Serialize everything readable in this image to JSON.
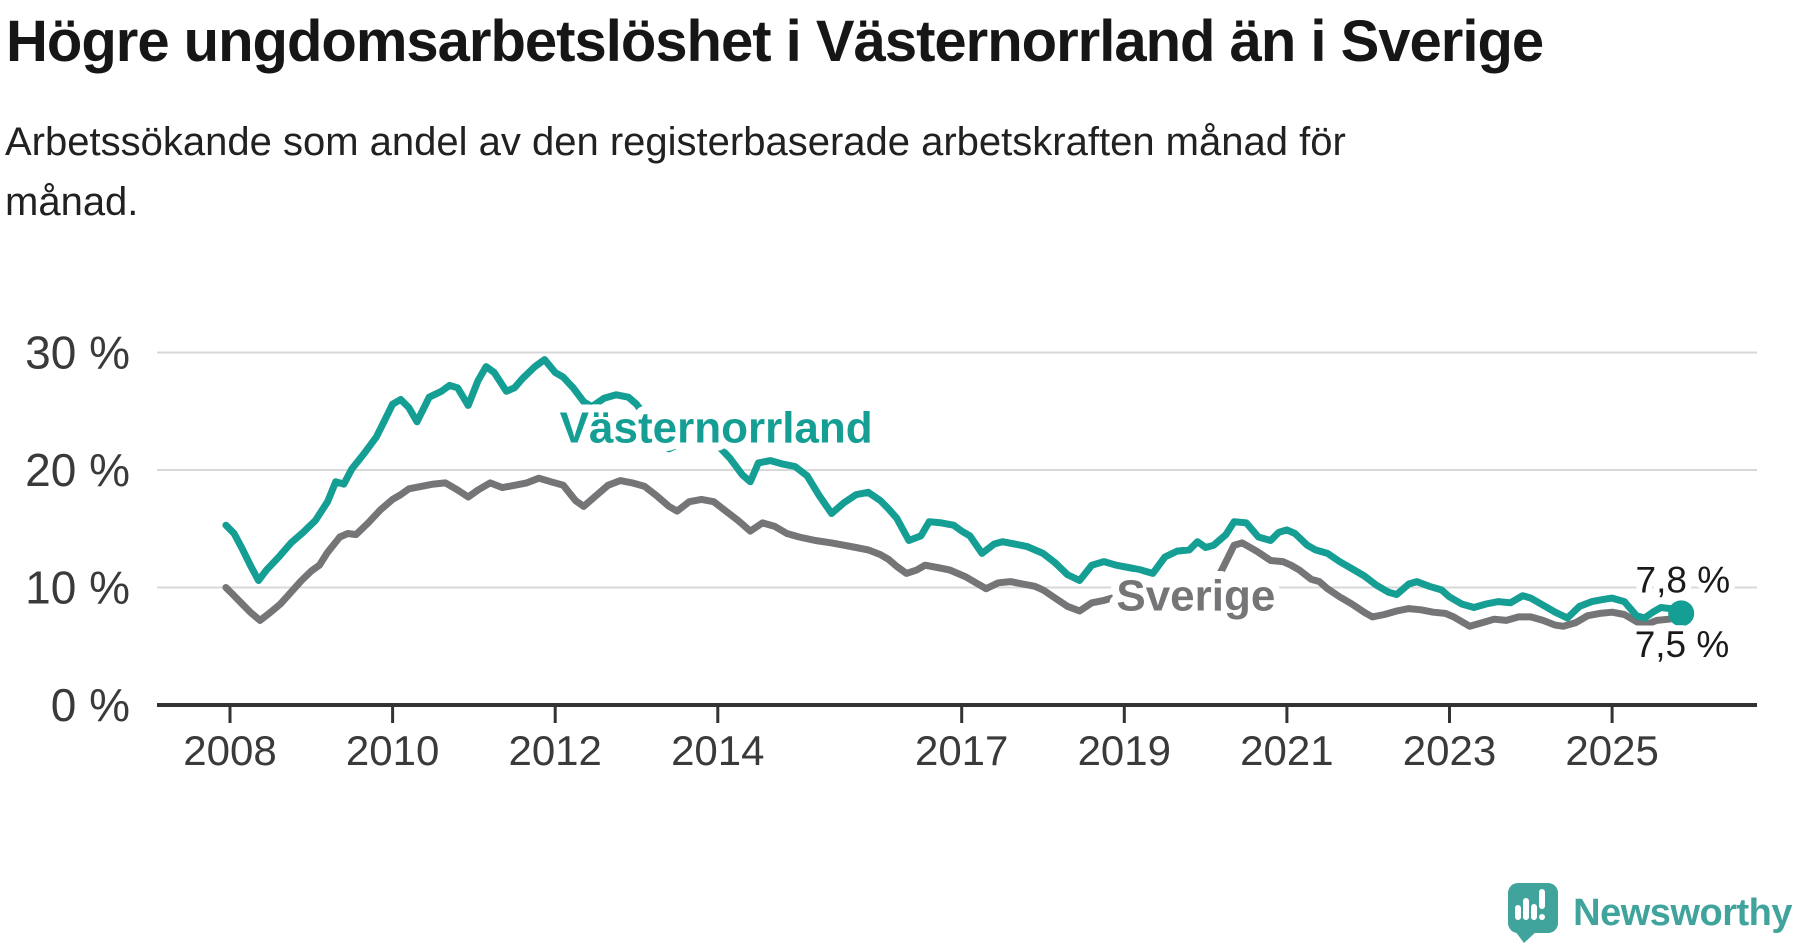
{
  "header": {
    "title": "Högre ungdomsarbetslöshet i Västernorrland än i Sverige",
    "subtitle": "Arbetssökande som andel av den registerbaserade arbetskraften månad för månad."
  },
  "footer": {
    "brand": "Newsworthy"
  },
  "colors": {
    "vasternorrland": "#149E94",
    "sverige": "#757578",
    "grid": "#d8d8d8",
    "axis": "#333336",
    "tick_text": "#3a3a3c",
    "value_text": "#1a1a1a",
    "logo_teal": "#40a39c",
    "background": "#ffffff"
  },
  "chart_data": {
    "type": "line",
    "title": "Högre ungdomsarbetslöshet i Västernorrland än i Sverige",
    "xlabel": "",
    "ylabel": "",
    "unit": "%",
    "grid": true,
    "legend_position": "inline-labels",
    "x_range_years": [
      2007.1,
      2026.8
    ],
    "y_range": [
      0,
      32
    ],
    "y_ticks": [
      {
        "label": "30 %",
        "value": 30
      },
      {
        "label": "20 %",
        "value": 20
      },
      {
        "label": "10 %",
        "value": 10
      },
      {
        "label": "0 %",
        "value": 0
      }
    ],
    "x_ticks": [
      {
        "label": "2008",
        "year": 2008
      },
      {
        "label": "2010",
        "year": 2010
      },
      {
        "label": "2012",
        "year": 2012
      },
      {
        "label": "2014",
        "year": 2014
      },
      {
        "label": "2017",
        "year": 2017
      },
      {
        "label": "2019",
        "year": 2019
      },
      {
        "label": "2021",
        "year": 2021
      },
      {
        "label": "2023",
        "year": 2023
      },
      {
        "label": "2025",
        "year": 2025
      }
    ],
    "series": [
      {
        "name": "Sverige",
        "color": "#757578",
        "end_dot": false,
        "final_value_label": "7,5 %",
        "points": [
          [
            2007.95,
            10.0
          ],
          [
            2008.05,
            9.3
          ],
          [
            2008.15,
            8.6
          ],
          [
            2008.25,
            7.9
          ],
          [
            2008.37,
            7.2
          ],
          [
            2008.5,
            7.9
          ],
          [
            2008.62,
            8.6
          ],
          [
            2008.75,
            9.6
          ],
          [
            2008.88,
            10.6
          ],
          [
            2009.0,
            11.4
          ],
          [
            2009.1,
            11.9
          ],
          [
            2009.2,
            13.0
          ],
          [
            2009.35,
            14.3
          ],
          [
            2009.45,
            14.6
          ],
          [
            2009.55,
            14.5
          ],
          [
            2009.7,
            15.5
          ],
          [
            2009.85,
            16.6
          ],
          [
            2010.0,
            17.5
          ],
          [
            2010.1,
            17.9
          ],
          [
            2010.2,
            18.4
          ],
          [
            2010.35,
            18.6
          ],
          [
            2010.5,
            18.8
          ],
          [
            2010.65,
            18.9
          ],
          [
            2010.8,
            18.3
          ],
          [
            2010.93,
            17.7
          ],
          [
            2011.05,
            18.3
          ],
          [
            2011.2,
            18.9
          ],
          [
            2011.35,
            18.5
          ],
          [
            2011.5,
            18.7
          ],
          [
            2011.65,
            18.9
          ],
          [
            2011.8,
            19.3
          ],
          [
            2011.95,
            19.0
          ],
          [
            2012.1,
            18.7
          ],
          [
            2012.25,
            17.4
          ],
          [
            2012.35,
            16.9
          ],
          [
            2012.5,
            17.8
          ],
          [
            2012.65,
            18.7
          ],
          [
            2012.8,
            19.1
          ],
          [
            2012.95,
            18.9
          ],
          [
            2013.1,
            18.6
          ],
          [
            2013.25,
            17.8
          ],
          [
            2013.4,
            16.9
          ],
          [
            2013.5,
            16.5
          ],
          [
            2013.65,
            17.3
          ],
          [
            2013.8,
            17.5
          ],
          [
            2013.95,
            17.3
          ],
          [
            2014.1,
            16.5
          ],
          [
            2014.25,
            15.7
          ],
          [
            2014.4,
            14.8
          ],
          [
            2014.55,
            15.5
          ],
          [
            2014.7,
            15.2
          ],
          [
            2014.85,
            14.6
          ],
          [
            2015.0,
            14.3
          ],
          [
            2015.2,
            14.0
          ],
          [
            2015.4,
            13.8
          ],
          [
            2015.55,
            13.6
          ],
          [
            2015.7,
            13.4
          ],
          [
            2015.85,
            13.2
          ],
          [
            2016.0,
            12.8
          ],
          [
            2016.1,
            12.4
          ],
          [
            2016.2,
            11.8
          ],
          [
            2016.32,
            11.2
          ],
          [
            2016.45,
            11.5
          ],
          [
            2016.55,
            11.9
          ],
          [
            2016.7,
            11.7
          ],
          [
            2016.85,
            11.5
          ],
          [
            2016.95,
            11.2
          ],
          [
            2017.05,
            10.9
          ],
          [
            2017.15,
            10.5
          ],
          [
            2017.3,
            9.9
          ],
          [
            2017.45,
            10.4
          ],
          [
            2017.6,
            10.5
          ],
          [
            2017.75,
            10.3
          ],
          [
            2017.9,
            10.1
          ],
          [
            2018.0,
            9.8
          ],
          [
            2018.15,
            9.1
          ],
          [
            2018.3,
            8.4
          ],
          [
            2018.45,
            8.0
          ],
          [
            2018.6,
            8.7
          ],
          [
            2018.75,
            8.9
          ],
          [
            2018.9,
            9.2
          ],
          [
            2019.05,
            8.9
          ],
          [
            2019.2,
            7.8
          ],
          [
            2019.35,
            8.7
          ],
          [
            2019.5,
            9.2
          ],
          [
            2019.65,
            9.0
          ],
          [
            2019.8,
            9.0
          ],
          [
            2019.95,
            9.4
          ],
          [
            2020.1,
            10.3
          ],
          [
            2020.2,
            11.5
          ],
          [
            2020.35,
            13.6
          ],
          [
            2020.45,
            13.8
          ],
          [
            2020.55,
            13.4
          ],
          [
            2020.65,
            13.0
          ],
          [
            2020.8,
            12.3
          ],
          [
            2020.95,
            12.2
          ],
          [
            2021.05,
            11.9
          ],
          [
            2021.15,
            11.5
          ],
          [
            2021.3,
            10.7
          ],
          [
            2021.4,
            10.5
          ],
          [
            2021.5,
            9.9
          ],
          [
            2021.65,
            9.2
          ],
          [
            2021.8,
            8.6
          ],
          [
            2021.95,
            7.9
          ],
          [
            2022.05,
            7.5
          ],
          [
            2022.2,
            7.7
          ],
          [
            2022.35,
            8.0
          ],
          [
            2022.5,
            8.2
          ],
          [
            2022.65,
            8.1
          ],
          [
            2022.8,
            7.9
          ],
          [
            2022.95,
            7.8
          ],
          [
            2023.05,
            7.5
          ],
          [
            2023.25,
            6.7
          ],
          [
            2023.4,
            7.0
          ],
          [
            2023.55,
            7.3
          ],
          [
            2023.7,
            7.2
          ],
          [
            2023.85,
            7.5
          ],
          [
            2024.0,
            7.5
          ],
          [
            2024.15,
            7.2
          ],
          [
            2024.3,
            6.8
          ],
          [
            2024.4,
            6.7
          ],
          [
            2024.55,
            7.0
          ],
          [
            2024.7,
            7.6
          ],
          [
            2024.85,
            7.8
          ],
          [
            2025.0,
            7.9
          ],
          [
            2025.15,
            7.7
          ],
          [
            2025.3,
            7.1
          ],
          [
            2025.4,
            6.8
          ],
          [
            2025.55,
            7.2
          ],
          [
            2025.7,
            7.3
          ],
          [
            2025.85,
            7.5
          ]
        ]
      },
      {
        "name": "Västernorrland",
        "color": "#149E94",
        "end_dot": true,
        "final_value_label": "7,8 %",
        "points": [
          [
            2007.95,
            15.3
          ],
          [
            2008.05,
            14.6
          ],
          [
            2008.15,
            13.3
          ],
          [
            2008.25,
            11.9
          ],
          [
            2008.35,
            10.6
          ],
          [
            2008.45,
            11.5
          ],
          [
            2008.6,
            12.6
          ],
          [
            2008.75,
            13.8
          ],
          [
            2008.9,
            14.7
          ],
          [
            2009.05,
            15.7
          ],
          [
            2009.2,
            17.3
          ],
          [
            2009.3,
            19.0
          ],
          [
            2009.4,
            18.8
          ],
          [
            2009.5,
            20.1
          ],
          [
            2009.65,
            21.4
          ],
          [
            2009.8,
            22.8
          ],
          [
            2009.9,
            24.2
          ],
          [
            2010.0,
            25.6
          ],
          [
            2010.1,
            26.0
          ],
          [
            2010.2,
            25.3
          ],
          [
            2010.3,
            24.1
          ],
          [
            2010.45,
            26.2
          ],
          [
            2010.6,
            26.7
          ],
          [
            2010.7,
            27.2
          ],
          [
            2010.8,
            27.0
          ],
          [
            2010.93,
            25.5
          ],
          [
            2011.05,
            27.6
          ],
          [
            2011.15,
            28.8
          ],
          [
            2011.25,
            28.3
          ],
          [
            2011.4,
            26.7
          ],
          [
            2011.5,
            27.0
          ],
          [
            2011.6,
            27.8
          ],
          [
            2011.75,
            28.8
          ],
          [
            2011.87,
            29.4
          ],
          [
            2012.0,
            28.3
          ],
          [
            2012.1,
            27.9
          ],
          [
            2012.22,
            27.0
          ],
          [
            2012.35,
            25.8
          ],
          [
            2012.45,
            25.4
          ],
          [
            2012.6,
            26.1
          ],
          [
            2012.75,
            26.4
          ],
          [
            2012.9,
            26.2
          ],
          [
            2013.0,
            25.6
          ],
          [
            2013.15,
            24.2
          ],
          [
            2013.3,
            22.4
          ],
          [
            2013.4,
            21.8
          ],
          [
            2013.55,
            22.3
          ],
          [
            2013.7,
            22.6
          ],
          [
            2013.85,
            22.3
          ],
          [
            2014.0,
            22.1
          ],
          [
            2014.15,
            21.0
          ],
          [
            2014.3,
            19.6
          ],
          [
            2014.4,
            19.0
          ],
          [
            2014.5,
            20.6
          ],
          [
            2014.65,
            20.8
          ],
          [
            2014.8,
            20.5
          ],
          [
            2014.95,
            20.3
          ],
          [
            2015.1,
            19.5
          ],
          [
            2015.25,
            17.8
          ],
          [
            2015.4,
            16.3
          ],
          [
            2015.55,
            17.2
          ],
          [
            2015.7,
            17.9
          ],
          [
            2015.85,
            18.1
          ],
          [
            2016.0,
            17.4
          ],
          [
            2016.1,
            16.7
          ],
          [
            2016.2,
            15.9
          ],
          [
            2016.35,
            14.0
          ],
          [
            2016.5,
            14.4
          ],
          [
            2016.6,
            15.6
          ],
          [
            2016.75,
            15.5
          ],
          [
            2016.9,
            15.3
          ],
          [
            2017.0,
            14.8
          ],
          [
            2017.1,
            14.4
          ],
          [
            2017.25,
            12.9
          ],
          [
            2017.4,
            13.7
          ],
          [
            2017.5,
            13.9
          ],
          [
            2017.65,
            13.7
          ],
          [
            2017.8,
            13.5
          ],
          [
            2018.0,
            12.9
          ],
          [
            2018.15,
            12.1
          ],
          [
            2018.3,
            11.1
          ],
          [
            2018.45,
            10.6
          ],
          [
            2018.6,
            11.9
          ],
          [
            2018.75,
            12.2
          ],
          [
            2018.9,
            11.9
          ],
          [
            2019.05,
            11.7
          ],
          [
            2019.2,
            11.5
          ],
          [
            2019.35,
            11.2
          ],
          [
            2019.5,
            12.6
          ],
          [
            2019.65,
            13.1
          ],
          [
            2019.8,
            13.2
          ],
          [
            2019.9,
            13.9
          ],
          [
            2020.0,
            13.4
          ],
          [
            2020.1,
            13.6
          ],
          [
            2020.25,
            14.5
          ],
          [
            2020.35,
            15.6
          ],
          [
            2020.5,
            15.5
          ],
          [
            2020.65,
            14.3
          ],
          [
            2020.8,
            14.0
          ],
          [
            2020.9,
            14.7
          ],
          [
            2021.0,
            14.9
          ],
          [
            2021.1,
            14.6
          ],
          [
            2021.25,
            13.6
          ],
          [
            2021.35,
            13.2
          ],
          [
            2021.5,
            12.9
          ],
          [
            2021.65,
            12.2
          ],
          [
            2021.8,
            11.6
          ],
          [
            2021.95,
            11.0
          ],
          [
            2022.1,
            10.2
          ],
          [
            2022.25,
            9.6
          ],
          [
            2022.35,
            9.4
          ],
          [
            2022.5,
            10.3
          ],
          [
            2022.6,
            10.5
          ],
          [
            2022.75,
            10.1
          ],
          [
            2022.9,
            9.8
          ],
          [
            2023.0,
            9.2
          ],
          [
            2023.15,
            8.6
          ],
          [
            2023.3,
            8.3
          ],
          [
            2023.45,
            8.6
          ],
          [
            2023.6,
            8.8
          ],
          [
            2023.75,
            8.7
          ],
          [
            2023.9,
            9.3
          ],
          [
            2024.0,
            9.1
          ],
          [
            2024.15,
            8.5
          ],
          [
            2024.3,
            7.9
          ],
          [
            2024.45,
            7.4
          ],
          [
            2024.6,
            8.4
          ],
          [
            2024.75,
            8.8
          ],
          [
            2024.9,
            9.0
          ],
          [
            2025.0,
            9.1
          ],
          [
            2025.15,
            8.8
          ],
          [
            2025.3,
            7.6
          ],
          [
            2025.4,
            7.4
          ],
          [
            2025.5,
            7.9
          ],
          [
            2025.6,
            8.3
          ],
          [
            2025.72,
            8.2
          ],
          [
            2025.85,
            7.8
          ]
        ]
      }
    ],
    "annotations": [
      {
        "id": "series-label-vasternorrland",
        "text": "Västernorrland",
        "year": 2013.98,
        "value": 23.6,
        "color": "#149E94",
        "role": "series-label"
      },
      {
        "id": "series-label-sverige",
        "text": "Sverige",
        "year": 2019.88,
        "value": 9.3,
        "color": "#757578",
        "role": "series-label"
      },
      {
        "id": "end-value-vasternorrland",
        "text": "7,8 %",
        "year": 2025.87,
        "value": 10.6,
        "color": "#1a1a1a",
        "role": "end-value"
      },
      {
        "id": "end-value-sverige",
        "text": "7,5 %",
        "year": 2025.86,
        "value": 5.1,
        "color": "#1a1a1a",
        "role": "end-value"
      }
    ]
  }
}
